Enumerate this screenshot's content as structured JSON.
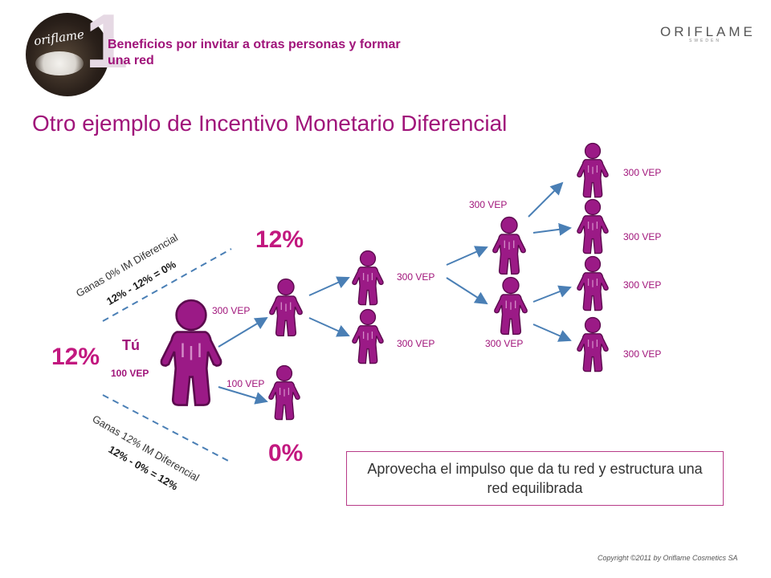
{
  "header": {
    "number": "1",
    "title": "Beneficios por invitar a otras personas y formar una red",
    "brand": "ORIFLAME",
    "brand_sub": "SWEDEN",
    "logo_text": "oriflame"
  },
  "slide": {
    "title": "Otro ejemplo de Incentivo Monetario Diferencial"
  },
  "you": {
    "label": "Tú",
    "vep": "100 VEP",
    "percent": "12%"
  },
  "branches": {
    "upper_percent": "12%",
    "lower_percent": "0%",
    "upper_note_1": "Ganas 0% IM Diferencial",
    "upper_note_2": "12% - 12% = 0%",
    "lower_note_1": "Ganas 12% IM Diferencial",
    "lower_note_2": "12% - 0% = 12%"
  },
  "vep_labels": {
    "l1_upper": "300 VEP",
    "l1_lower": "100 VEP",
    "l2_upper": "300 VEP",
    "l2_lower": "300 VEP",
    "l3_upper": "300 VEP",
    "l3_lower": "300 VEP",
    "l4_1": "300 VEP",
    "l4_2": "300 VEP",
    "l4_3": "300 VEP",
    "l4_4": "300 VEP"
  },
  "callout": {
    "text": "Aprovecha el impulso que da tu red y estructura una red equilibrada"
  },
  "footer": {
    "copyright": "Copyright ©2011 by Oriflame Cosmetics SA"
  },
  "colors": {
    "accent": "#a0147a",
    "figure": "#9b1a86",
    "arrow": "#4a7fb5",
    "dash": "#4a7fb5"
  }
}
